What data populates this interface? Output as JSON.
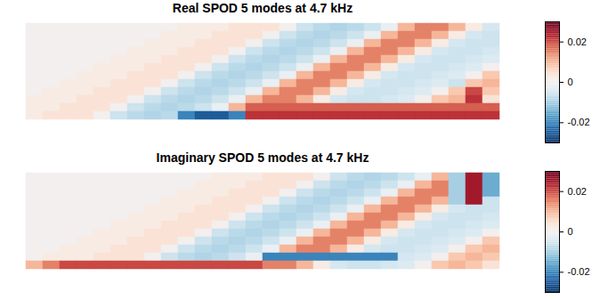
{
  "chart_data": [
    {
      "type": "heatmap",
      "title": "Real SPOD 5 modes at 4.7 kHz",
      "tick_labels": false,
      "colorbar_range": [
        -0.03,
        0.03
      ],
      "colorbar_ticks": [
        -0.02,
        0,
        0.02
      ],
      "cells": [
        [
          0,
          0,
          0,
          0,
          0,
          0,
          0,
          0,
          0,
          0.002,
          0.002,
          0.002,
          0.004,
          0.004,
          0.004,
          0,
          -0.006,
          -0.008,
          -0.009,
          -0.008,
          -0.006,
          -0.002,
          0.01,
          0.015,
          0.015,
          0.01,
          0.002,
          -0.005
        ],
        [
          0,
          0,
          0,
          0,
          0,
          0,
          0,
          0,
          0.002,
          0.002,
          0.002,
          0.004,
          0.004,
          0.004,
          0,
          -0.006,
          -0.008,
          -0.009,
          -0.008,
          -0.006,
          -0.002,
          0.01,
          0.015,
          0.015,
          0.01,
          0.002,
          -0.005,
          -0.006
        ],
        [
          0,
          0,
          0,
          0,
          0,
          0,
          0,
          0.002,
          0.002,
          0.002,
          0.004,
          0.004,
          0.004,
          0,
          -0.006,
          -0.008,
          -0.009,
          -0.008,
          -0.006,
          -0.002,
          0.01,
          0.015,
          0.015,
          0.01,
          0.002,
          -0.005,
          -0.006,
          -0.006
        ],
        [
          0,
          0,
          0,
          0,
          0,
          0,
          0.002,
          0.002,
          0.002,
          0.004,
          0.004,
          0.004,
          0,
          -0.006,
          -0.008,
          -0.009,
          -0.008,
          -0.006,
          -0.002,
          0.01,
          0.015,
          0.015,
          0.01,
          0.002,
          -0.005,
          -0.006,
          -0.006,
          -0.005
        ],
        [
          0,
          0,
          0,
          0,
          0,
          0.002,
          0.002,
          0.002,
          0.004,
          0.004,
          0.004,
          0,
          -0.006,
          -0.008,
          -0.009,
          -0.008,
          -0.006,
          -0.002,
          0.01,
          0.015,
          0.015,
          0.01,
          0.002,
          -0.005,
          -0.006,
          -0.006,
          -0.005,
          -0.004
        ],
        [
          0,
          0,
          0,
          0,
          0.002,
          0.002,
          0.002,
          0.004,
          0.004,
          0.004,
          0,
          -0.006,
          -0.008,
          -0.009,
          -0.008,
          -0.006,
          -0.002,
          0.01,
          0.015,
          0.015,
          0.01,
          0.002,
          -0.005,
          -0.006,
          -0.006,
          -0.005,
          -0.004,
          0
        ],
        [
          0,
          0,
          0,
          0.002,
          0.002,
          0.002,
          0.004,
          0.004,
          0.004,
          0,
          -0.006,
          -0.008,
          -0.009,
          -0.008,
          -0.006,
          -0.002,
          0.01,
          0.015,
          0.015,
          0.01,
          0.002,
          -0.005,
          -0.006,
          -0.006,
          -0.005,
          -0.004,
          0,
          0.008
        ],
        [
          0,
          0,
          0.002,
          0.002,
          0.002,
          0.004,
          0.004,
          0.004,
          0,
          -0.006,
          -0.008,
          -0.009,
          -0.008,
          -0.006,
          -0.002,
          0.01,
          0.015,
          0.015,
          0.01,
          0.002,
          -0.005,
          -0.006,
          -0.006,
          -0.005,
          -0.004,
          -0.006,
          0.008,
          0.01
        ],
        [
          0,
          0.002,
          0.002,
          0.002,
          0.004,
          0.004,
          0.004,
          0,
          -0.006,
          -0.008,
          -0.009,
          -0.008,
          -0.006,
          -0.002,
          0.01,
          0.015,
          0.015,
          0.01,
          0.002,
          -0.005,
          -0.006,
          -0.006,
          -0.005,
          -0.004,
          0,
          0.008,
          0.02,
          0.008
        ],
        [
          0.002,
          0.002,
          0.002,
          0.004,
          0.004,
          0.004,
          0,
          -0.006,
          -0.008,
          -0.009,
          -0.008,
          -0.006,
          -0.002,
          0.01,
          0.015,
          0.015,
          0.01,
          0.002,
          -0.005,
          -0.006,
          -0.006,
          -0.005,
          -0.004,
          0,
          0.008,
          0.01,
          0.022,
          0.004
        ],
        [
          0.002,
          0.002,
          0.004,
          0.004,
          0.004,
          0,
          -0.006,
          -0.008,
          -0.009,
          -0.008,
          -0.006,
          -0.002,
          0.01,
          0.018,
          0.018,
          0.018,
          0.018,
          0.018,
          0.018,
          0.018,
          0.018,
          0.018,
          0.018,
          0.018,
          0.018,
          0.018,
          0.018,
          0.018
        ],
        [
          0.002,
          0.004,
          0.004,
          0.004,
          0,
          -0.006,
          -0.008,
          -0.009,
          -0.008,
          -0.02,
          -0.025,
          -0.025,
          -0.02,
          0.022,
          0.022,
          0.022,
          0.022,
          0.022,
          0.022,
          0.022,
          0.022,
          0.022,
          0.022,
          0.022,
          0.022,
          0.022,
          0.022,
          0.022
        ]
      ]
    },
    {
      "type": "heatmap",
      "title": "Imaginary SPOD 5 modes at 4.7 kHz",
      "tick_labels": false,
      "colorbar_range": [
        -0.03,
        0.03
      ],
      "colorbar_ticks": [
        -0.02,
        0,
        0.02
      ],
      "cells": [
        [
          0,
          0,
          0,
          0,
          0,
          0,
          0,
          0,
          0,
          0,
          0,
          0.002,
          0.002,
          0.002,
          0.004,
          0.004,
          0.004,
          0,
          -0.006,
          -0.008,
          -0.009,
          -0.008,
          -0.006,
          -0.002,
          0.01,
          -0.01,
          0.025,
          -0.015
        ],
        [
          0,
          0,
          0,
          0,
          0,
          0,
          0,
          0,
          0,
          0,
          0.002,
          0.002,
          0.002,
          0.004,
          0.004,
          0.004,
          0,
          -0.006,
          -0.008,
          -0.009,
          -0.008,
          -0.006,
          -0.002,
          0.01,
          0.015,
          -0.01,
          0.025,
          -0.015
        ],
        [
          0,
          0,
          0,
          0,
          0,
          0,
          0,
          0,
          0,
          0.002,
          0.002,
          0.002,
          0.004,
          0.004,
          0.004,
          0,
          -0.006,
          -0.008,
          -0.009,
          -0.008,
          -0.006,
          -0.002,
          0.01,
          0.015,
          0.015,
          -0.01,
          0.025,
          -0.015
        ],
        [
          0,
          0,
          0,
          0,
          0,
          0,
          0,
          0,
          0.002,
          0.002,
          0.002,
          0.004,
          0.004,
          0.004,
          0,
          -0.006,
          -0.008,
          -0.009,
          -0.008,
          -0.006,
          -0.002,
          0.01,
          0.015,
          0.015,
          0.01,
          -0.01,
          0.025,
          -0.006
        ],
        [
          0,
          0,
          0,
          0,
          0,
          0,
          0,
          0.002,
          0.002,
          0.002,
          0.004,
          0.004,
          0.004,
          0,
          -0.006,
          -0.008,
          -0.009,
          -0.008,
          -0.006,
          -0.002,
          0.01,
          0.015,
          0.015,
          0.01,
          0.002,
          -0.005,
          -0.006,
          -0.006
        ],
        [
          0,
          0,
          0,
          0,
          0,
          0,
          0.002,
          0.002,
          0.002,
          0.004,
          0.004,
          0.004,
          0,
          -0.006,
          -0.008,
          -0.009,
          -0.008,
          -0.006,
          -0.002,
          0.01,
          0.015,
          0.015,
          0.01,
          0.002,
          -0.005,
          -0.006,
          -0.006,
          -0.005
        ],
        [
          0,
          0,
          0,
          0,
          0,
          0.002,
          0.002,
          0.002,
          0.004,
          0.004,
          0.004,
          0,
          -0.006,
          -0.008,
          -0.009,
          -0.008,
          -0.006,
          -0.002,
          0.01,
          0.015,
          0.015,
          0.01,
          0.002,
          -0.005,
          -0.006,
          -0.006,
          -0.005,
          -0.004
        ],
        [
          0,
          0,
          0,
          0,
          0.002,
          0.002,
          0.002,
          0.004,
          0.004,
          0.004,
          0,
          -0.006,
          -0.008,
          -0.009,
          -0.008,
          -0.006,
          -0.002,
          0.01,
          0.015,
          0.015,
          0.01,
          0.002,
          -0.005,
          -0.006,
          -0.006,
          -0.005,
          -0.004,
          0
        ],
        [
          0,
          0,
          0,
          0.002,
          0.002,
          0.002,
          0.004,
          0.004,
          0.004,
          0,
          -0.006,
          -0.008,
          -0.009,
          -0.008,
          -0.006,
          -0.002,
          0.01,
          0.015,
          0.015,
          0.01,
          0.002,
          -0.005,
          -0.006,
          -0.006,
          -0.005,
          -0.004,
          0,
          0.008
        ],
        [
          0,
          0,
          0.002,
          0.002,
          0.002,
          0.004,
          0.004,
          0.004,
          0,
          -0.006,
          -0.008,
          -0.009,
          -0.008,
          -0.006,
          -0.002,
          0.01,
          0.015,
          0.015,
          0.01,
          0.002,
          -0.005,
          -0.006,
          -0.006,
          -0.005,
          -0.004,
          0,
          0.008,
          0.01
        ],
        [
          0,
          0.002,
          0.002,
          0.002,
          0.004,
          0.004,
          0.004,
          0,
          -0.006,
          -0.008,
          -0.009,
          -0.008,
          -0.006,
          -0.002,
          -0.02,
          -0.02,
          -0.02,
          -0.02,
          -0.02,
          -0.02,
          -0.02,
          -0.02,
          -0.005,
          -0.004,
          0,
          0.008,
          0.01,
          0.008
        ],
        [
          0.01,
          0.015,
          0.02,
          0.02,
          0.02,
          0.02,
          0.02,
          0.02,
          0.02,
          0.02,
          0.02,
          0.02,
          0.02,
          0.02,
          0.015,
          0.015,
          0.01,
          0.002,
          -0.005,
          -0.006,
          -0.006,
          -0.005,
          -0.004,
          0,
          0.008,
          0.01,
          0.008,
          0.004
        ]
      ]
    }
  ]
}
